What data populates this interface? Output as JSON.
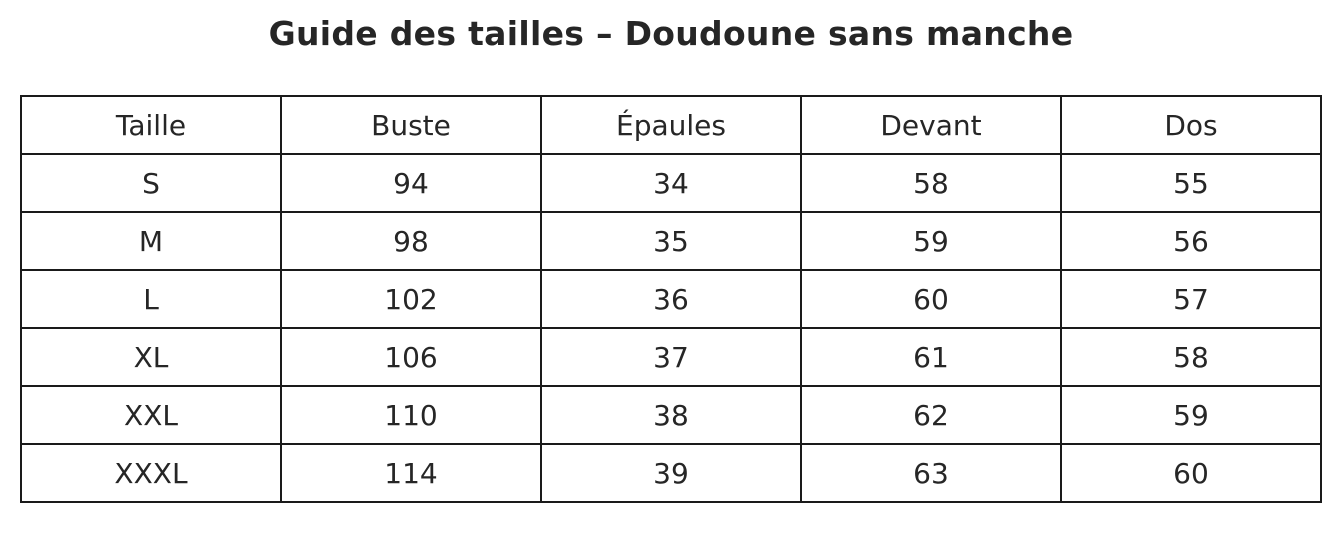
{
  "chart_data": {
    "type": "table",
    "title": "Guide des tailles – Doudoune sans manche",
    "columns": [
      "Taille",
      "Buste",
      "Épaules",
      "Devant",
      "Dos"
    ],
    "rows": [
      [
        "S",
        "94",
        "34",
        "58",
        "55"
      ],
      [
        "M",
        "98",
        "35",
        "59",
        "56"
      ],
      [
        "L",
        "102",
        "36",
        "60",
        "57"
      ],
      [
        "XL",
        "106",
        "37",
        "61",
        "58"
      ],
      [
        "XXL",
        "110",
        "38",
        "62",
        "59"
      ],
      [
        "XXXL",
        "114",
        "39",
        "63",
        "60"
      ]
    ]
  }
}
